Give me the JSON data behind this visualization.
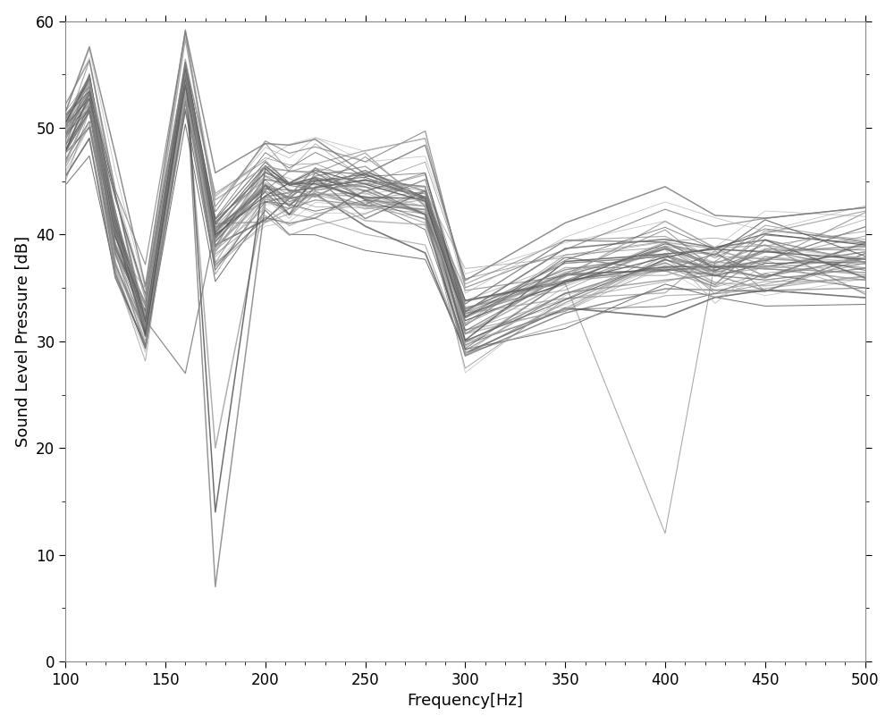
{
  "freqs": [
    100,
    112,
    125,
    140,
    160,
    175,
    200,
    212,
    225,
    250,
    280,
    300,
    350,
    400,
    425,
    450,
    500
  ],
  "n_lines": 55,
  "xlim": [
    100,
    500
  ],
  "ylim": [
    0,
    60
  ],
  "xlabel": "Frequency[Hz]",
  "ylabel": "Sound Level Pressure [dB]",
  "xticks": [
    100,
    150,
    200,
    250,
    300,
    350,
    400,
    450,
    500
  ],
  "yticks": [
    0,
    10,
    20,
    30,
    40,
    50,
    60
  ],
  "background_color": "#ffffff",
  "mean_pattern": [
    49,
    53,
    40,
    32,
    55,
    40,
    45,
    44,
    45,
    44,
    44,
    32,
    36,
    38,
    37,
    38,
    38
  ],
  "std_pattern": [
    3,
    3,
    6,
    5,
    2,
    4,
    3,
    3,
    3,
    4,
    4,
    5,
    4,
    4,
    4,
    4,
    4
  ],
  "corr_strength": 0.7,
  "seed": 7
}
